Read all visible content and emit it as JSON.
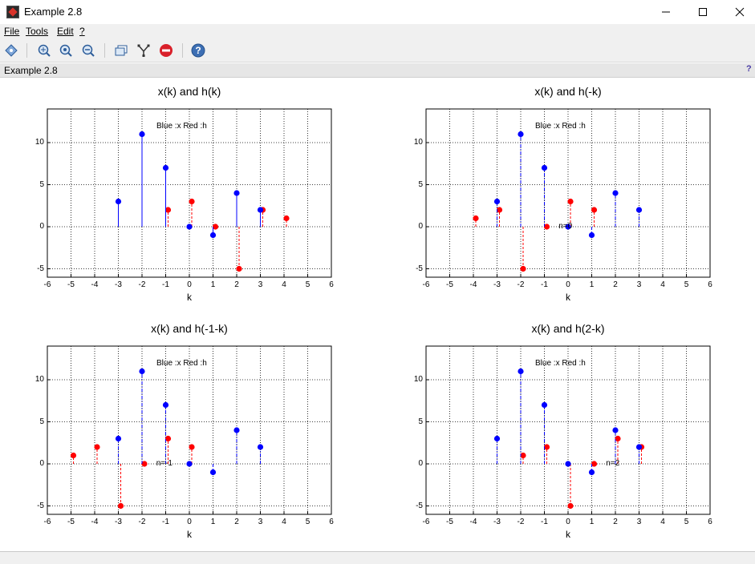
{
  "window": {
    "title": "Example 2.8",
    "min_icon": "minimize-icon",
    "max_icon": "maximize-icon",
    "close_icon": "close-icon"
  },
  "menu": [
    "File",
    "Tools",
    "Edit",
    "?"
  ],
  "toolbar": {
    "icons": [
      "datatip-icon",
      "zoom-grid-icon",
      "zoom-in-icon",
      "zoom-out-icon",
      "figure-window-icon",
      "tree-icon",
      "stop-icon",
      "help-icon"
    ]
  },
  "figure_label": "Example 2.8",
  "figure_help": "?",
  "colors": {
    "x_series": "#0000ff",
    "h_series": "#ff0000"
  },
  "legend_text": "Blue :x  Red :h",
  "chart_data": [
    {
      "type": "scatter",
      "title": "x(k) and h(k)",
      "xlabel": "k",
      "ylabel": "",
      "xlim": [
        -6,
        6
      ],
      "ylim": [
        -6,
        14
      ],
      "xticks": [
        -6,
        -5,
        -4,
        -3,
        -2,
        -1,
        0,
        1,
        2,
        3,
        4,
        5,
        6
      ],
      "yticks": [
        -5,
        0,
        5,
        10
      ],
      "grid": true,
      "legend": "Blue :x  Red :h",
      "annotation": "",
      "series": [
        {
          "color": "blue",
          "x": [
            -3,
            -2,
            -1,
            0,
            1,
            2,
            3
          ],
          "values": [
            3,
            11,
            7,
            0,
            -1,
            4,
            2
          ]
        },
        {
          "color": "red",
          "x": [
            -1,
            0,
            1,
            2,
            3,
            4
          ],
          "values": [
            2,
            3,
            0,
            -5,
            2,
            1
          ]
        }
      ]
    },
    {
      "type": "scatter",
      "title": "x(k) and h(-k)",
      "xlabel": "k",
      "ylabel": "",
      "xlim": [
        -6,
        6
      ],
      "ylim": [
        -6,
        14
      ],
      "xticks": [
        -6,
        -5,
        -4,
        -3,
        -2,
        -1,
        0,
        1,
        2,
        3,
        4,
        5,
        6
      ],
      "yticks": [
        -5,
        0,
        5,
        10
      ],
      "grid": true,
      "legend": "Blue :x  Red :h",
      "annotation": "n=0",
      "series": [
        {
          "color": "blue",
          "x": [
            -3,
            -2,
            -1,
            0,
            1,
            2,
            3
          ],
          "values": [
            3,
            11,
            7,
            0,
            -1,
            4,
            2
          ]
        },
        {
          "color": "red",
          "x": [
            -4,
            -3,
            -2,
            -1,
            0,
            1
          ],
          "values": [
            1,
            2,
            -5,
            0,
            3,
            2
          ]
        }
      ]
    },
    {
      "type": "scatter",
      "title": "x(k) and h(-1-k)",
      "xlabel": "k",
      "ylabel": "",
      "xlim": [
        -6,
        6
      ],
      "ylim": [
        -6,
        14
      ],
      "xticks": [
        -6,
        -5,
        -4,
        -3,
        -2,
        -1,
        0,
        1,
        2,
        3,
        4,
        5,
        6
      ],
      "yticks": [
        -5,
        0,
        5,
        10
      ],
      "grid": true,
      "legend": "Blue :x  Red :h",
      "annotation": "n=-1",
      "series": [
        {
          "color": "blue",
          "x": [
            -3,
            -2,
            -1,
            0,
            1,
            2,
            3
          ],
          "values": [
            3,
            11,
            7,
            0,
            -1,
            4,
            2
          ]
        },
        {
          "color": "red",
          "x": [
            -5,
            -4,
            -3,
            -2,
            -1,
            0
          ],
          "values": [
            1,
            2,
            -5,
            0,
            3,
            2
          ]
        }
      ]
    },
    {
      "type": "scatter",
      "title": "x(k) and h(2-k)",
      "xlabel": "k",
      "ylabel": "",
      "xlim": [
        -6,
        6
      ],
      "ylim": [
        -6,
        14
      ],
      "xticks": [
        -6,
        -5,
        -4,
        -3,
        -2,
        -1,
        0,
        1,
        2,
        3,
        4,
        5,
        6
      ],
      "yticks": [
        -5,
        0,
        5,
        10
      ],
      "grid": true,
      "legend": "Blue :x  Red :h",
      "annotation": "n=2",
      "series": [
        {
          "color": "blue",
          "x": [
            -3,
            -2,
            -1,
            0,
            1,
            2,
            3
          ],
          "values": [
            3,
            11,
            7,
            0,
            -1,
            4,
            2
          ]
        },
        {
          "color": "red",
          "x": [
            -2,
            -1,
            0,
            1,
            2,
            3
          ],
          "values": [
            1,
            2,
            -5,
            0,
            3,
            2
          ]
        }
      ]
    }
  ]
}
